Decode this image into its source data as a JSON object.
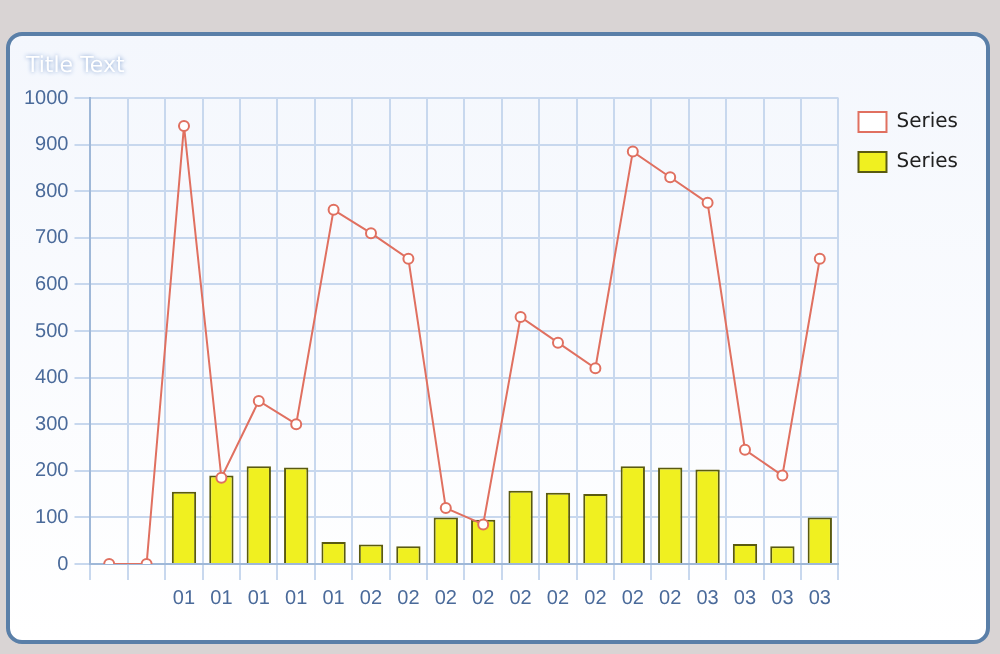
{
  "chart_data": {
    "type": "bar",
    "title": "Title Text",
    "categories": [
      null,
      null,
      "01",
      "01",
      "01",
      "01",
      "01",
      "02",
      "02",
      "02",
      "02",
      "02",
      "02",
      "02",
      "02",
      "02",
      "03",
      "03",
      "03",
      "03"
    ],
    "series": [
      {
        "name": "Series",
        "type": "line",
        "color": "#e07060",
        "values": [
          0,
          0,
          940,
          185,
          350,
          300,
          760,
          710,
          655,
          120,
          85,
          530,
          475,
          420,
          885,
          830,
          775,
          245,
          190,
          655
        ]
      },
      {
        "name": "Series",
        "color": "#f0f020",
        "values": [
          null,
          null,
          155,
          190,
          210,
          207,
          47,
          42,
          38,
          100,
          95,
          157,
          153,
          150,
          210,
          207,
          203,
          43,
          38,
          100
        ]
      }
    ],
    "ylim": [
      0,
      1000
    ],
    "yticks": [
      0,
      100,
      200,
      300,
      400,
      500,
      600,
      700,
      800,
      900,
      1000
    ],
    "grid": true,
    "legend": "top right",
    "marker": "circle"
  }
}
